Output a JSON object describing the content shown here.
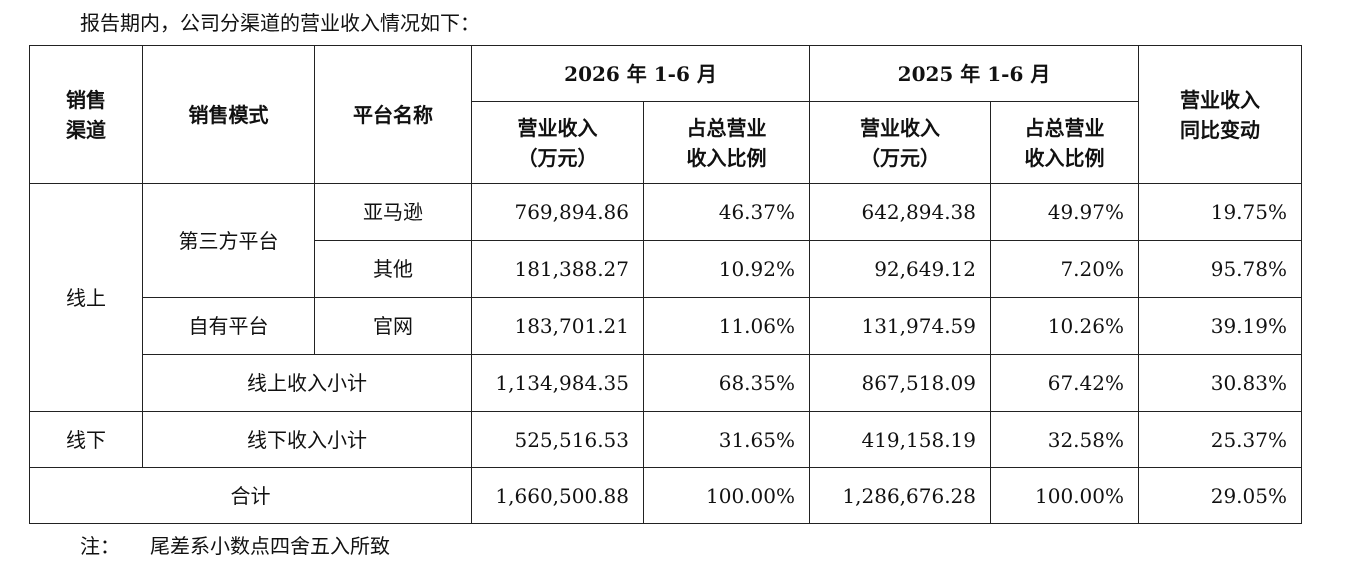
{
  "intro_text": "报告期内，公司分渠道的营业收入情况如下：",
  "header": {
    "channel_line1": "销售",
    "channel_line2": "渠道",
    "mode": "销售模式",
    "platform": "平台名称",
    "period_2026": "2026 年 1-6 月",
    "period_2025": "2025 年 1-6 月",
    "revenue_line1": "营业收入",
    "revenue_line2": "（万元）",
    "share_line1": "占总营业",
    "share_line2": "收入比例",
    "yoy_line1": "营业收入",
    "yoy_line2": "同比变动"
  },
  "rows": {
    "online_label": "线上",
    "offline_label": "线下",
    "third_party_label": "第三方平台",
    "own_platform_label": "自有平台",
    "amazon": {
      "platform": "亚马逊",
      "rev_2026": "769,894.86",
      "share_2026": "46.37%",
      "rev_2025": "642,894.38",
      "share_2025": "49.97%",
      "yoy": "19.75%"
    },
    "other": {
      "platform": "其他",
      "rev_2026": "181,388.27",
      "share_2026": "10.92%",
      "rev_2025": "92,649.12",
      "share_2025": "7.20%",
      "yoy": "95.78%"
    },
    "official": {
      "platform": "官网",
      "rev_2026": "183,701.21",
      "share_2026": "11.06%",
      "rev_2025": "131,974.59",
      "share_2025": "10.26%",
      "yoy": "39.19%"
    },
    "online_subtotal": {
      "label": "线上收入小计",
      "rev_2026": "1,134,984.35",
      "share_2026": "68.35%",
      "rev_2025": "867,518.09",
      "share_2025": "67.42%",
      "yoy": "30.83%"
    },
    "offline_subtotal": {
      "label": "线下收入小计",
      "rev_2026": "525,516.53",
      "share_2026": "31.65%",
      "rev_2025": "419,158.19",
      "share_2025": "32.58%",
      "yoy": "25.37%"
    },
    "total": {
      "label": "合计",
      "rev_2026": "1,660,500.88",
      "share_2026": "100.00%",
      "rev_2025": "1,286,676.28",
      "share_2025": "100.00%",
      "yoy": "29.05%"
    }
  },
  "note": {
    "label": "注：",
    "text": "尾差系小数点四舍五入所致"
  }
}
